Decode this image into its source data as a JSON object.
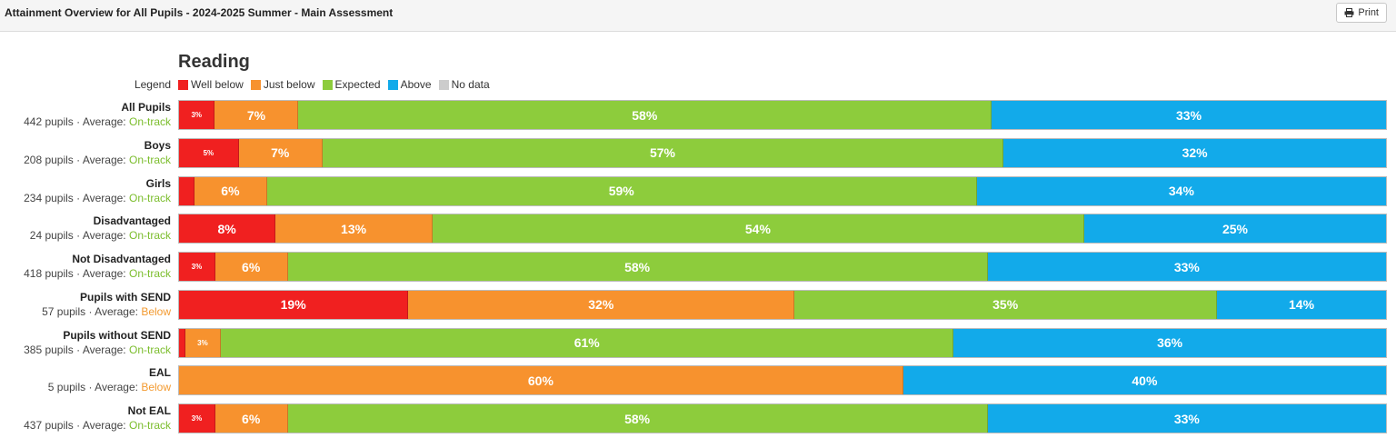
{
  "page": {
    "title": "Attainment Overview for All Pupils - 2024-2025 Summer - Main Assessment",
    "print_label": "Print"
  },
  "colors": {
    "well_below": "#f02020",
    "just_below": "#f7922e",
    "expected": "#8dcc3c",
    "above": "#12aaea",
    "no_data": "#cccccc",
    "on_track_text": "#7bbd2c",
    "below_text": "#f39a30"
  },
  "chart_data": {
    "type": "bar",
    "orientation": "horizontal",
    "stacked": true,
    "normalized": true,
    "title": "Reading",
    "legend_title": "Legend",
    "legend_position": "top-left",
    "series": [
      {
        "name": "Well below",
        "values": [
          3,
          5,
          1.3,
          8,
          3,
          19,
          0.5,
          0,
          3
        ]
      },
      {
        "name": "Just below",
        "values": [
          7,
          7,
          6,
          13,
          6,
          32,
          3,
          60,
          6
        ]
      },
      {
        "name": "Expected",
        "values": [
          58,
          57,
          59,
          54,
          58,
          35,
          61,
          0,
          58
        ]
      },
      {
        "name": "Above",
        "values": [
          33,
          32,
          34,
          25,
          33,
          14,
          36,
          40,
          33
        ]
      },
      {
        "name": "No data",
        "values": [
          0,
          0,
          0,
          0,
          0,
          0,
          0,
          0,
          0
        ]
      }
    ],
    "series_labels": [
      [
        "3%",
        "5%",
        "",
        "8%",
        "3%",
        "19%",
        "",
        "",
        "3%"
      ],
      [
        "7%",
        "7%",
        "6%",
        "13%",
        "6%",
        "32%",
        "3%",
        "60%",
        "6%"
      ],
      [
        "58%",
        "57%",
        "59%",
        "54%",
        "58%",
        "35%",
        "61%",
        "",
        "58%"
      ],
      [
        "33%",
        "32%",
        "34%",
        "25%",
        "33%",
        "14%",
        "36%",
        "40%",
        "33%"
      ],
      [
        "",
        "",
        "",
        "",
        "",
        "",
        "",
        "",
        ""
      ]
    ],
    "groups": [
      {
        "name": "All Pupils",
        "pupils": "442 pupils",
        "avg_label": "Average:",
        "status": "On-track"
      },
      {
        "name": "Boys",
        "pupils": "208 pupils",
        "avg_label": "Average:",
        "status": "On-track"
      },
      {
        "name": "Girls",
        "pupils": "234 pupils",
        "avg_label": "Average:",
        "status": "On-track"
      },
      {
        "name": "Disadvantaged",
        "pupils": "24 pupils",
        "avg_label": "Average:",
        "status": "On-track"
      },
      {
        "name": "Not Disadvantaged",
        "pupils": "418 pupils",
        "avg_label": "Average:",
        "status": "On-track"
      },
      {
        "name": "Pupils with SEND",
        "pupils": "57 pupils",
        "avg_label": "Average:",
        "status": "Below"
      },
      {
        "name": "Pupils without SEND",
        "pupils": "385 pupils",
        "avg_label": "Average:",
        "status": "On-track"
      },
      {
        "name": "EAL",
        "pupils": "5 pupils",
        "avg_label": "Average:",
        "status": "Below"
      },
      {
        "name": "Not EAL",
        "pupils": "437 pupils",
        "avg_label": "Average:",
        "status": "On-track"
      }
    ]
  }
}
